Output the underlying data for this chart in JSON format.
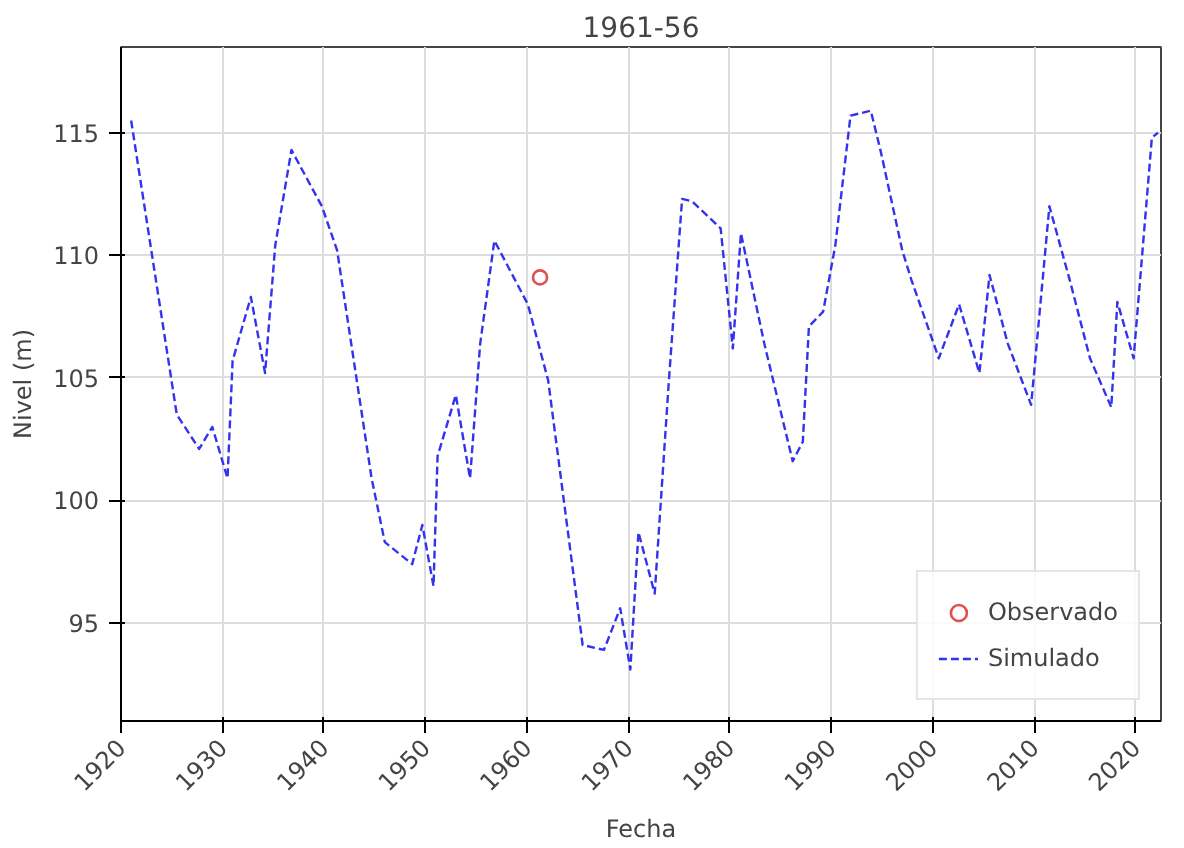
{
  "chart_data": {
    "type": "line",
    "title": "1961-56",
    "xlabel": "Fecha",
    "ylabel": "Nivel (m)",
    "xlim": [
      1920,
      2022.5
    ],
    "ylim": [
      91,
      118.5
    ],
    "xticks": [
      1920,
      1930,
      1940,
      1950,
      1960,
      1970,
      1980,
      1990,
      2000,
      2010,
      2020
    ],
    "yticks": [
      95,
      100,
      105,
      110,
      115
    ],
    "grid": true,
    "legend": "bottom right",
    "series": [
      {
        "name": "Observado",
        "type": "scatter",
        "marker": "circle",
        "color": "#e05050",
        "x": [
          1961.3
        ],
        "values": [
          109.1
        ]
      },
      {
        "name": "Simulado",
        "line_style": "dashed",
        "color": "#3333ee",
        "x": [
          1921,
          1925.5,
          1927.7,
          1929,
          1930.5,
          1931,
          1932.8,
          1934.2,
          1935.2,
          1936.8,
          1939.8,
          1941.3,
          1944.7,
          1946,
          1948.7,
          1949.7,
          1950.8,
          1951.2,
          1953,
          1954.4,
          1955.4,
          1956.8,
          1960.1,
          1962.1,
          1965.5,
          1967.6,
          1969.2,
          1970.2,
          1971,
          1972.6,
          1974,
          1975.3,
          1976.3,
          1979.1,
          1980.3,
          1981.1,
          1983.4,
          1986.2,
          1987.2,
          1987.8,
          1989.2,
          1990.4,
          1991.9,
          1993.9,
          1994.9,
          1997,
          1997.9,
          2000.6,
          2002.6,
          2004.6,
          2005.6,
          2007.4,
          2009.7,
          2011.5,
          2013.5,
          2015.5,
          2017.6,
          2018.2,
          2019.8,
          2021.6,
          2022.2
        ],
        "values": [
          115.5,
          103.5,
          102.1,
          103,
          100.9,
          105.7,
          108.3,
          105.2,
          110.4,
          114.3,
          112,
          110.2,
          100.9,
          98.3,
          97.4,
          99,
          96.5,
          101.8,
          104.3,
          100.9,
          106.4,
          110.6,
          108,
          104.9,
          94.1,
          93.9,
          95.6,
          93.1,
          98.7,
          96.2,
          104.9,
          112.3,
          112.2,
          111.1,
          106.2,
          110.9,
          106.4,
          101.6,
          102.4,
          107.1,
          107.7,
          110.4,
          115.7,
          115.9,
          114.2,
          110.2,
          109,
          105.8,
          108,
          105.2,
          109.2,
          106.4,
          103.9,
          112,
          109,
          105.8,
          103.8,
          108.1,
          105.8,
          114.8,
          115
        ]
      }
    ]
  }
}
